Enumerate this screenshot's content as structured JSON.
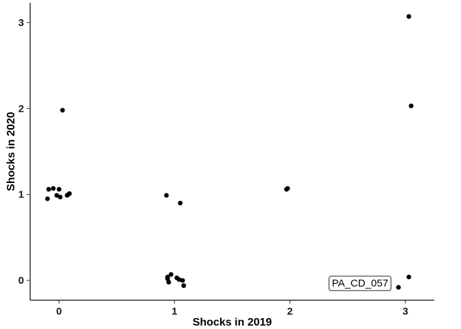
{
  "chart_data": {
    "type": "scatter",
    "xlabel": "Shocks in 2019",
    "ylabel": "Shocks in 2020",
    "xlim": [
      -0.25,
      3.25
    ],
    "ylim": [
      -0.23,
      3.23
    ],
    "xticks": [
      0,
      1,
      2,
      3
    ],
    "yticks": [
      0,
      1,
      2,
      3
    ],
    "grid": false,
    "point_color": "#000000",
    "points": [
      {
        "x": -0.1,
        "y": 0.95
      },
      {
        "x": -0.09,
        "y": 1.06
      },
      {
        "x": -0.05,
        "y": 1.07
      },
      {
        "x": -0.02,
        "y": 0.99
      },
      {
        "x": 0.0,
        "y": 1.06
      },
      {
        "x": 0.01,
        "y": 0.97
      },
      {
        "x": 0.03,
        "y": 1.98
      },
      {
        "x": 0.07,
        "y": 0.99
      },
      {
        "x": 0.08,
        "y": 1.0
      },
      {
        "x": 0.09,
        "y": 1.01
      },
      {
        "x": 0.93,
        "y": 0.99
      },
      {
        "x": 0.94,
        "y": 0.04
      },
      {
        "x": 0.94,
        "y": 0.02
      },
      {
        "x": 0.95,
        "y": -0.02
      },
      {
        "x": 0.97,
        "y": 0.07
      },
      {
        "x": 1.02,
        "y": 0.03
      },
      {
        "x": 1.04,
        "y": 0.01
      },
      {
        "x": 1.05,
        "y": 0.9
      },
      {
        "x": 1.07,
        "y": 0.0
      },
      {
        "x": 1.08,
        "y": -0.06
      },
      {
        "x": 1.97,
        "y": 1.06
      },
      {
        "x": 1.98,
        "y": 1.07
      },
      {
        "x": 2.94,
        "y": -0.08
      },
      {
        "x": 3.03,
        "y": 3.07
      },
      {
        "x": 3.03,
        "y": 0.04
      },
      {
        "x": 3.05,
        "y": 2.03
      }
    ],
    "annotations": [
      {
        "text": "PA_CD_057",
        "x": 2.94,
        "y": -0.03
      }
    ]
  }
}
